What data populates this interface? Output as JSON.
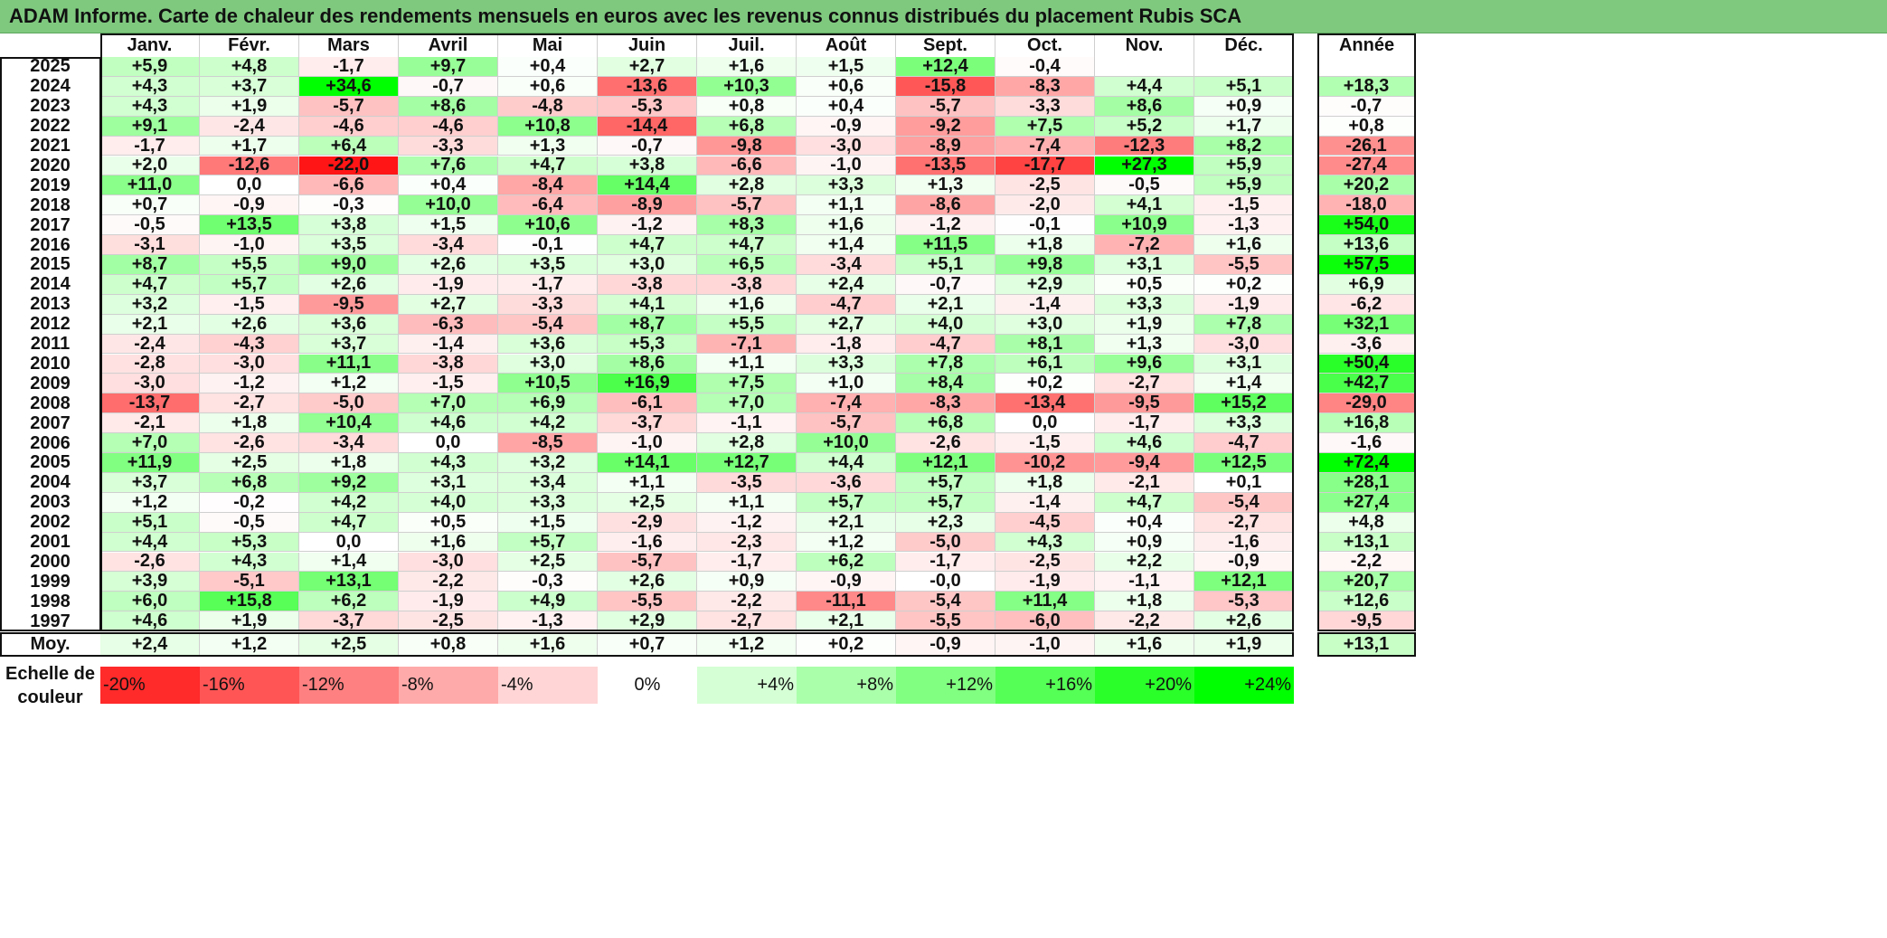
{
  "title": "ADAM Informe. Carte de chaleur des rendements mensuels en euros avec les revenus connus distribués du placement Rubis SCA",
  "chart_data": {
    "type": "heatmap",
    "title": "ADAM Informe. Carte de chaleur des rendements mensuels en euros avec les revenus connus distribués du placement Rubis SCA",
    "columns": [
      "Janv.",
      "Févr.",
      "Mars",
      "Avril",
      "Mai",
      "Juin",
      "Juil.",
      "Août",
      "Sept.",
      "Oct.",
      "Nov.",
      "Déc."
    ],
    "year_header": "Année",
    "rows": [
      {
        "year": "2025",
        "months": [
          "+5,9",
          "+4,8",
          "-1,7",
          "+9,7",
          "+0,4",
          "+2,7",
          "+1,6",
          "+1,5",
          "+12,4",
          "-0,4",
          "",
          ""
        ],
        "annual": ""
      },
      {
        "year": "2024",
        "months": [
          "+4,3",
          "+3,7",
          "+34,6",
          "-0,7",
          "+0,6",
          "-13,6",
          "+10,3",
          "+0,6",
          "-15,8",
          "-8,3",
          "+4,4",
          "+5,1"
        ],
        "annual": "+18,3"
      },
      {
        "year": "2023",
        "months": [
          "+4,3",
          "+1,9",
          "-5,7",
          "+8,6",
          "-4,8",
          "-5,3",
          "+0,8",
          "+0,4",
          "-5,7",
          "-3,3",
          "+8,6",
          "+0,9"
        ],
        "annual": "-0,7"
      },
      {
        "year": "2022",
        "months": [
          "+9,1",
          "-2,4",
          "-4,6",
          "-4,6",
          "+10,8",
          "-14,4",
          "+6,8",
          "-0,9",
          "-9,2",
          "+7,5",
          "+5,2",
          "+1,7"
        ],
        "annual": "+0,8"
      },
      {
        "year": "2021",
        "months": [
          "-1,7",
          "+1,7",
          "+6,4",
          "-3,3",
          "+1,3",
          "-0,7",
          "-9,8",
          "-3,0",
          "-8,9",
          "-7,4",
          "-12,3",
          "+8,2"
        ],
        "annual": "-26,1"
      },
      {
        "year": "2020",
        "months": [
          "+2,0",
          "-12,6",
          "-22,0",
          "+7,6",
          "+4,7",
          "+3,8",
          "-6,6",
          "-1,0",
          "-13,5",
          "-17,7",
          "+27,3",
          "+5,9"
        ],
        "annual": "-27,4"
      },
      {
        "year": "2019",
        "months": [
          "+11,0",
          "0,0",
          "-6,6",
          "+0,4",
          "-8,4",
          "+14,4",
          "+2,8",
          "+3,3",
          "+1,3",
          "-2,5",
          "-0,5",
          "+5,9"
        ],
        "annual": "+20,2"
      },
      {
        "year": "2018",
        "months": [
          "+0,7",
          "-0,9",
          "-0,3",
          "+10,0",
          "-6,4",
          "-8,9",
          "-5,7",
          "+1,1",
          "-8,6",
          "-2,0",
          "+4,1",
          "-1,5"
        ],
        "annual": "-18,0"
      },
      {
        "year": "2017",
        "months": [
          "-0,5",
          "+13,5",
          "+3,8",
          "+1,5",
          "+10,6",
          "-1,2",
          "+8,3",
          "+1,6",
          "-1,2",
          "-0,1",
          "+10,9",
          "-1,3"
        ],
        "annual": "+54,0"
      },
      {
        "year": "2016",
        "months": [
          "-3,1",
          "-1,0",
          "+3,5",
          "-3,4",
          "-0,1",
          "+4,7",
          "+4,7",
          "+1,4",
          "+11,5",
          "+1,8",
          "-7,2",
          "+1,6"
        ],
        "annual": "+13,6"
      },
      {
        "year": "2015",
        "months": [
          "+8,7",
          "+5,5",
          "+9,0",
          "+2,6",
          "+3,5",
          "+3,0",
          "+6,5",
          "-3,4",
          "+5,1",
          "+9,8",
          "+3,1",
          "-5,5"
        ],
        "annual": "+57,5"
      },
      {
        "year": "2014",
        "months": [
          "+4,7",
          "+5,7",
          "+2,6",
          "-1,9",
          "-1,7",
          "-3,8",
          "-3,8",
          "+2,4",
          "-0,7",
          "+2,9",
          "+0,5",
          "+0,2"
        ],
        "annual": "+6,9"
      },
      {
        "year": "2013",
        "months": [
          "+3,2",
          "-1,5",
          "-9,5",
          "+2,7",
          "-3,3",
          "+4,1",
          "+1,6",
          "-4,7",
          "+2,1",
          "-1,4",
          "+3,3",
          "-1,9"
        ],
        "annual": "-6,2"
      },
      {
        "year": "2012",
        "months": [
          "+2,1",
          "+2,6",
          "+3,6",
          "-6,3",
          "-5,4",
          "+8,7",
          "+5,5",
          "+2,7",
          "+4,0",
          "+3,0",
          "+1,9",
          "+7,8"
        ],
        "annual": "+32,1"
      },
      {
        "year": "2011",
        "months": [
          "-2,4",
          "-4,3",
          "+3,7",
          "-1,4",
          "+3,6",
          "+5,3",
          "-7,1",
          "-1,8",
          "-4,7",
          "+8,1",
          "+1,3",
          "-3,0"
        ],
        "annual": "-3,6"
      },
      {
        "year": "2010",
        "months": [
          "-2,8",
          "-3,0",
          "+11,1",
          "-3,8",
          "+3,0",
          "+8,6",
          "+1,1",
          "+3,3",
          "+7,8",
          "+6,1",
          "+9,6",
          "+3,1"
        ],
        "annual": "+50,4"
      },
      {
        "year": "2009",
        "months": [
          "-3,0",
          "-1,2",
          "+1,2",
          "-1,5",
          "+10,5",
          "+16,9",
          "+7,5",
          "+1,0",
          "+8,4",
          "+0,2",
          "-2,7",
          "+1,4"
        ],
        "annual": "+42,7"
      },
      {
        "year": "2008",
        "months": [
          "-13,7",
          "-2,7",
          "-5,0",
          "+7,0",
          "+6,9",
          "-6,1",
          "+7,0",
          "-7,4",
          "-8,3",
          "-13,4",
          "-9,5",
          "+15,2"
        ],
        "annual": "-29,0"
      },
      {
        "year": "2007",
        "months": [
          "-2,1",
          "+1,8",
          "+10,4",
          "+4,6",
          "+4,2",
          "-3,7",
          "-1,1",
          "-5,7",
          "+6,8",
          "0,0",
          "-1,7",
          "+3,3"
        ],
        "annual": "+16,8"
      },
      {
        "year": "2006",
        "months": [
          "+7,0",
          "-2,6",
          "-3,4",
          "0,0",
          "-8,5",
          "-1,0",
          "+2,8",
          "+10,0",
          "-2,6",
          "-1,5",
          "+4,6",
          "-4,7"
        ],
        "annual": "-1,6"
      },
      {
        "year": "2005",
        "months": [
          "+11,9",
          "+2,5",
          "+1,8",
          "+4,3",
          "+3,2",
          "+14,1",
          "+12,7",
          "+4,4",
          "+12,1",
          "-10,2",
          "-9,4",
          "+12,5"
        ],
        "annual": "+72,4"
      },
      {
        "year": "2004",
        "months": [
          "+3,7",
          "+6,8",
          "+9,2",
          "+3,1",
          "+3,4",
          "+1,1",
          "-3,5",
          "-3,6",
          "+5,7",
          "+1,8",
          "-2,1",
          "+0,1"
        ],
        "annual": "+28,1"
      },
      {
        "year": "2003",
        "months": [
          "+1,2",
          "-0,2",
          "+4,2",
          "+4,0",
          "+3,3",
          "+2,5",
          "+1,1",
          "+5,7",
          "+5,7",
          "-1,4",
          "+4,7",
          "-5,4"
        ],
        "annual": "+27,4"
      },
      {
        "year": "2002",
        "months": [
          "+5,1",
          "-0,5",
          "+4,7",
          "+0,5",
          "+1,5",
          "-2,9",
          "-1,2",
          "+2,1",
          "+2,3",
          "-4,5",
          "+0,4",
          "-2,7"
        ],
        "annual": "+4,8"
      },
      {
        "year": "2001",
        "months": [
          "+4,4",
          "+5,3",
          "0,0",
          "+1,6",
          "+5,7",
          "-1,6",
          "-2,3",
          "+1,2",
          "-5,0",
          "+4,3",
          "+0,9",
          "-1,6"
        ],
        "annual": "+13,1"
      },
      {
        "year": "2000",
        "months": [
          "-2,6",
          "+4,3",
          "+1,4",
          "-3,0",
          "+2,5",
          "-5,7",
          "-1,7",
          "+6,2",
          "-1,7",
          "-2,5",
          "+2,2",
          "-0,9"
        ],
        "annual": "-2,2"
      },
      {
        "year": "1999",
        "months": [
          "+3,9",
          "-5,1",
          "+13,1",
          "-2,2",
          "-0,3",
          "+2,6",
          "+0,9",
          "-0,9",
          "-0,0",
          "-1,9",
          "-1,1",
          "+12,1"
        ],
        "annual": "+20,7"
      },
      {
        "year": "1998",
        "months": [
          "+6,0",
          "+15,8",
          "+6,2",
          "-1,9",
          "+4,9",
          "-5,5",
          "-2,2",
          "-11,1",
          "-5,4",
          "+11,4",
          "+1,8",
          "-5,3"
        ],
        "annual": "+12,6"
      },
      {
        "year": "1997",
        "months": [
          "+4,6",
          "+1,9",
          "-3,7",
          "-2,5",
          "-1,3",
          "+2,9",
          "-2,7",
          "+2,1",
          "-5,5",
          "-6,0",
          "-2,2",
          "+2,6"
        ],
        "annual": "-9,5"
      }
    ],
    "average": {
      "label": "Moy.",
      "months": [
        "+2,4",
        "+1,2",
        "+2,5",
        "+0,8",
        "+1,6",
        "+0,7",
        "+1,2",
        "+0,2",
        "-0,9",
        "-1,0",
        "+1,6",
        "+1,9"
      ],
      "annual": "+13,1"
    },
    "scale": {
      "label_line1": "Echelle de",
      "label_line2": "couleur",
      "steps": [
        {
          "label": "-20%",
          "value": -20
        },
        {
          "label": "-16%",
          "value": -16
        },
        {
          "label": "-12%",
          "value": -12
        },
        {
          "label": "-8%",
          "value": -8
        },
        {
          "label": "-4%",
          "value": -4
        },
        {
          "label": "0%",
          "value": 0
        },
        {
          "label": "+4%",
          "value": 4
        },
        {
          "label": "+8%",
          "value": 8
        },
        {
          "label": "+12%",
          "value": 12
        },
        {
          "label": "+16%",
          "value": 16
        },
        {
          "label": "+20%",
          "value": 20
        },
        {
          "label": "+24%",
          "value": 24
        }
      ]
    },
    "colors": {
      "negative": "#ff0000",
      "neutral": "#ffffff",
      "positive": "#00ff00",
      "title_bg": "#7fc97f"
    }
  }
}
